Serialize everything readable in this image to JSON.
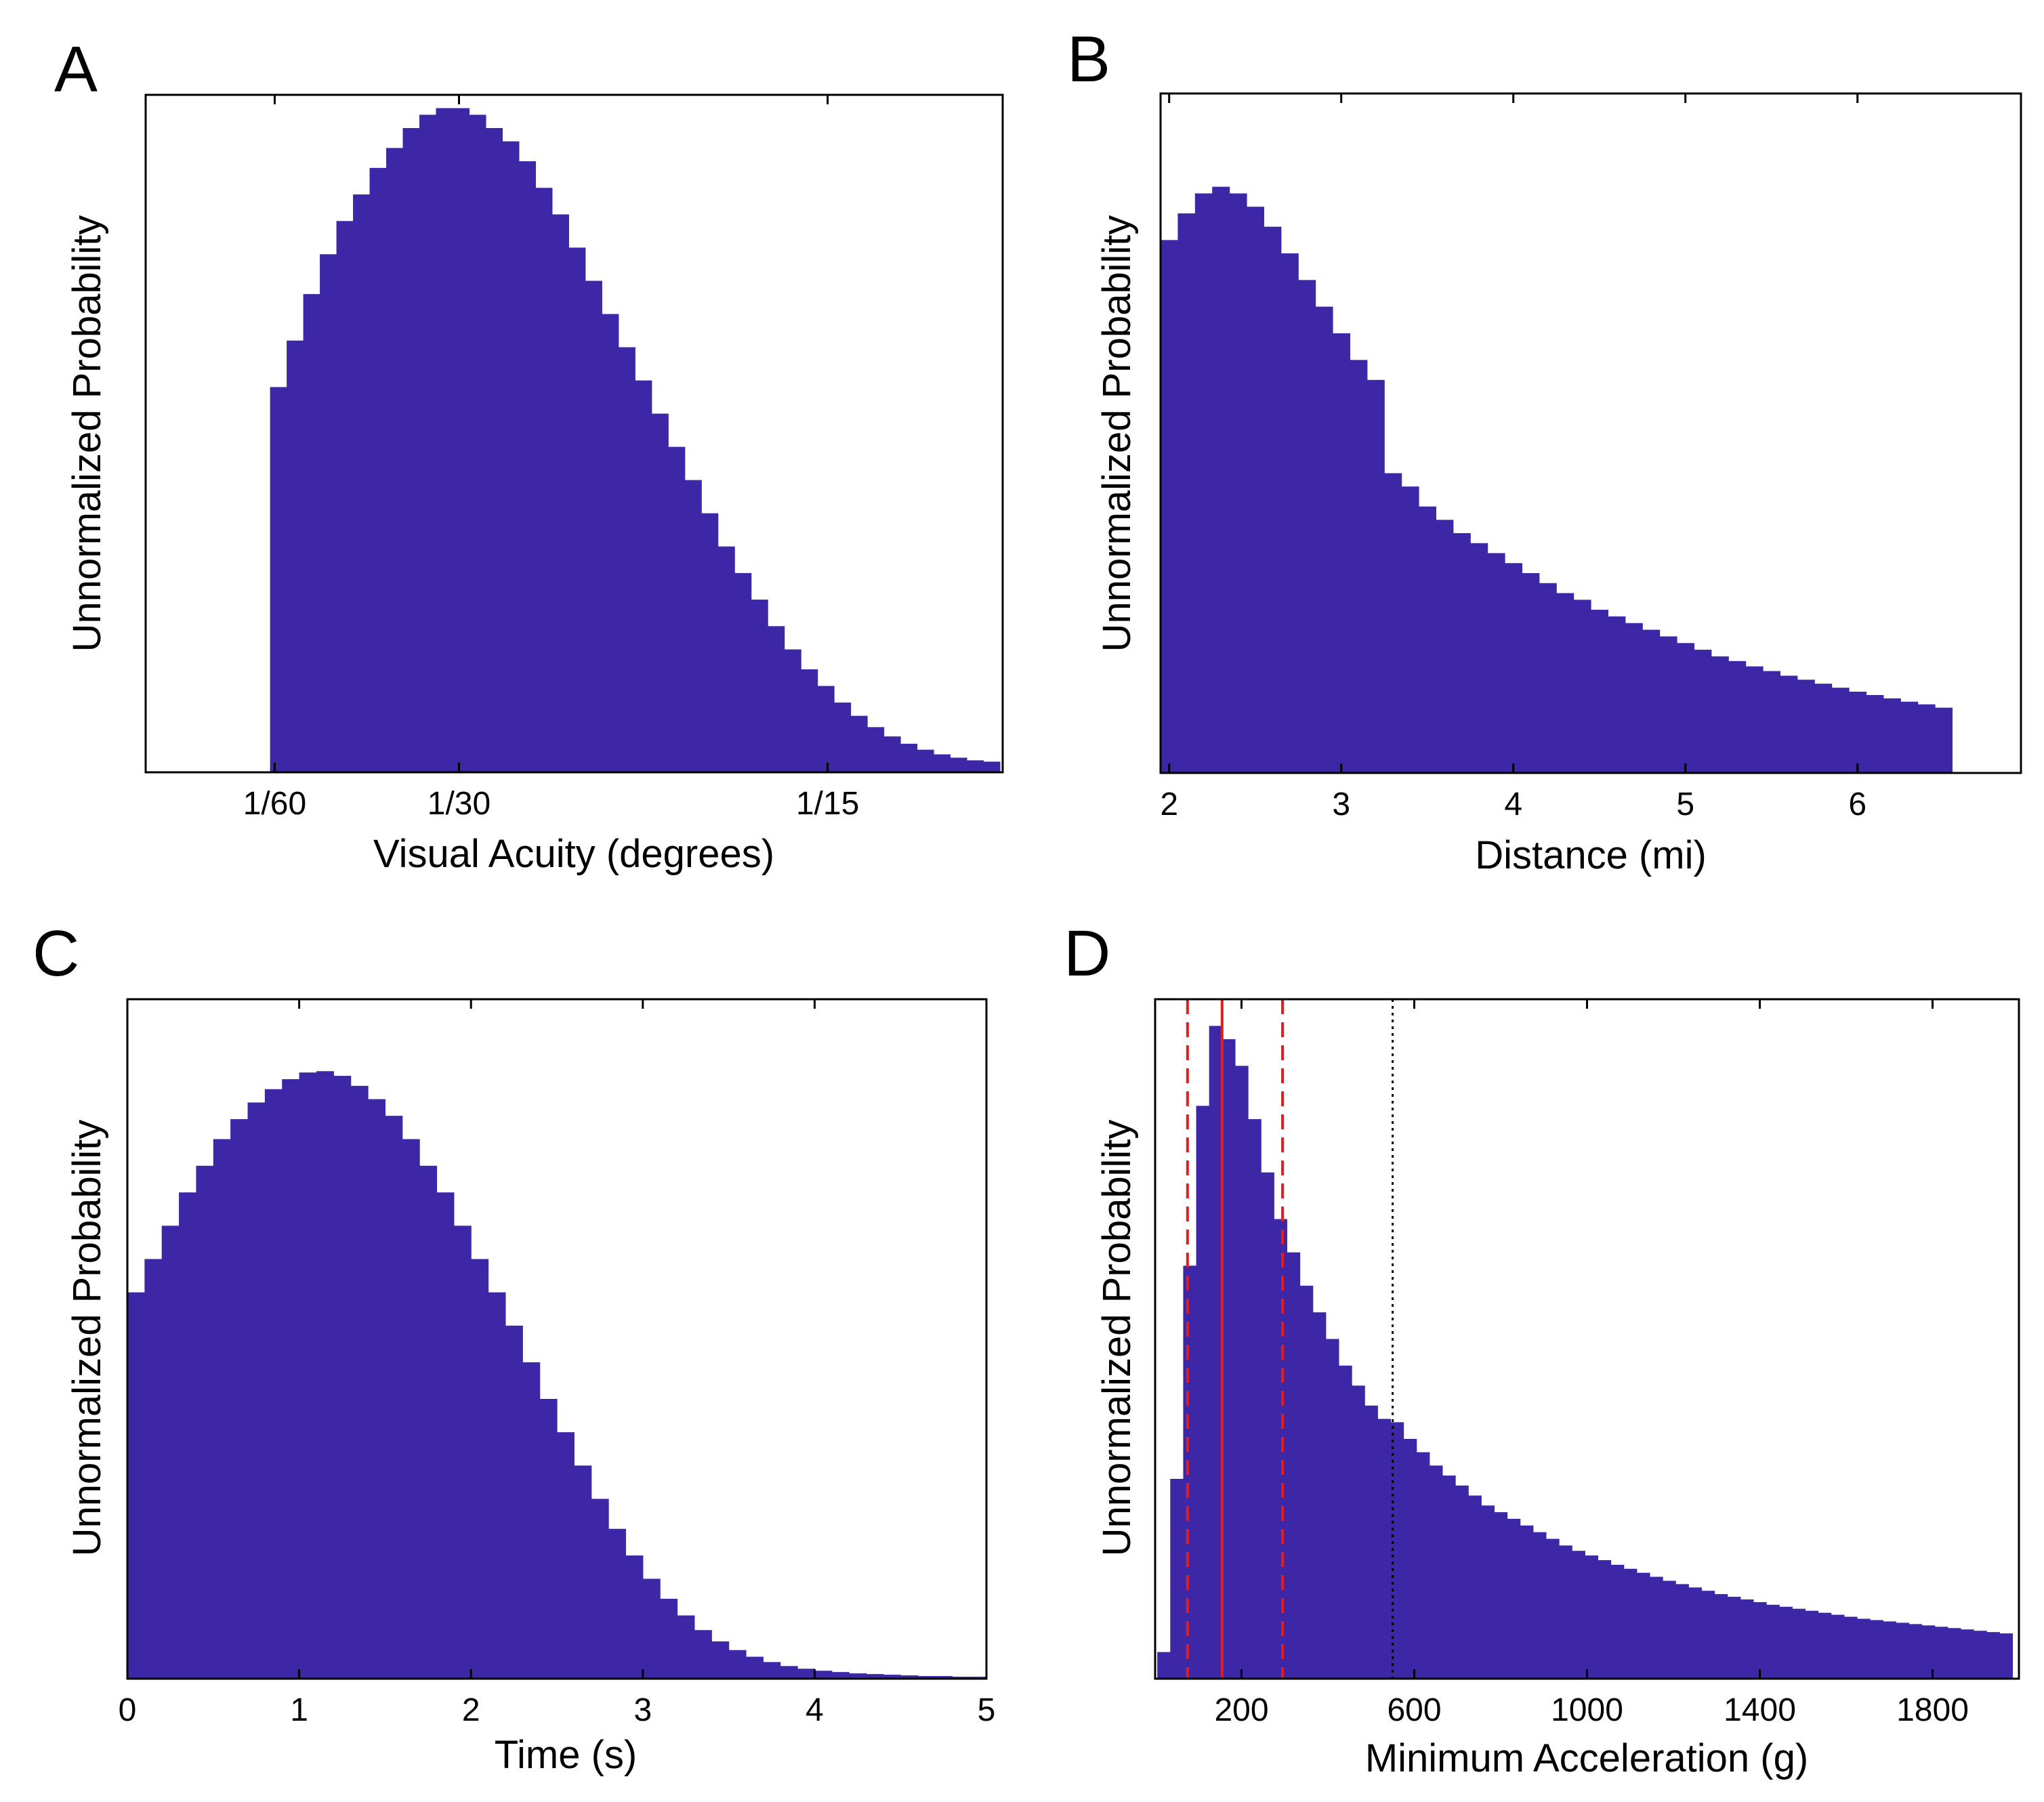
{
  "colors": {
    "bars": "#3d27a6",
    "median_line": "#e11d1d",
    "quartile_line": "#e11d1d",
    "threshold_line": "#000000",
    "axes": "#000000"
  },
  "chart_data": [
    {
      "panel": "A",
      "type": "bar",
      "title": "",
      "xlabel": "Visual Acuity (degrees)",
      "ylabel": "Unnormalized Probability",
      "xlim": [
        0.005,
        0.0825
      ],
      "ylim": [
        0,
        1.02
      ],
      "grid": false,
      "x_ticks": [
        0.016667,
        0.033333,
        0.066667
      ],
      "x_tick_labels": [
        "1/60",
        "1/30",
        "1/15"
      ],
      "x": [
        0.017,
        0.0185,
        0.02,
        0.0215,
        0.023,
        0.0245,
        0.026,
        0.0275,
        0.029,
        0.0305,
        0.032,
        0.0335,
        0.035,
        0.0365,
        0.038,
        0.0395,
        0.041,
        0.0425,
        0.044,
        0.0455,
        0.047,
        0.0485,
        0.05,
        0.0515,
        0.053,
        0.0545,
        0.056,
        0.0575,
        0.059,
        0.0605,
        0.062,
        0.0635,
        0.065,
        0.0665,
        0.068,
        0.0695,
        0.071,
        0.0725,
        0.074,
        0.0755,
        0.077,
        0.0785,
        0.08,
        0.0815
      ],
      "values": [
        0.58,
        0.65,
        0.72,
        0.78,
        0.83,
        0.87,
        0.91,
        0.94,
        0.97,
        0.99,
        1.0,
        1.0,
        0.99,
        0.97,
        0.95,
        0.92,
        0.88,
        0.84,
        0.79,
        0.74,
        0.69,
        0.64,
        0.59,
        0.54,
        0.49,
        0.44,
        0.39,
        0.34,
        0.3,
        0.26,
        0.22,
        0.185,
        0.155,
        0.13,
        0.105,
        0.085,
        0.068,
        0.054,
        0.043,
        0.034,
        0.027,
        0.022,
        0.018,
        0.016
      ]
    },
    {
      "panel": "B",
      "type": "bar",
      "title": "",
      "xlabel": "Distance (mi)",
      "ylabel": "Unnormalized Probability",
      "xlim": [
        1.95,
        6.95
      ],
      "ylim": [
        0,
        1.02
      ],
      "grid": false,
      "x_ticks": [
        2,
        3,
        4,
        5,
        6
      ],
      "x_tick_labels": [
        "2",
        "3",
        "4",
        "5",
        "6"
      ],
      "x": [
        2.0,
        2.1,
        2.2,
        2.3,
        2.4,
        2.5,
        2.6,
        2.7,
        2.8,
        2.9,
        3.0,
        3.1,
        3.2,
        3.3,
        3.4,
        3.5,
        3.6,
        3.7,
        3.8,
        3.9,
        4.0,
        4.1,
        4.2,
        4.3,
        4.4,
        4.5,
        4.6,
        4.7,
        4.8,
        4.9,
        5.0,
        5.1,
        5.2,
        5.3,
        5.4,
        5.5,
        5.6,
        5.7,
        5.8,
        5.9,
        6.0,
        6.1,
        6.2,
        6.3,
        6.4,
        6.5
      ],
      "values": [
        0.8,
        0.84,
        0.87,
        0.88,
        0.87,
        0.85,
        0.82,
        0.78,
        0.74,
        0.7,
        0.66,
        0.62,
        0.59,
        0.45,
        0.43,
        0.4,
        0.38,
        0.36,
        0.345,
        0.33,
        0.315,
        0.3,
        0.285,
        0.27,
        0.26,
        0.245,
        0.235,
        0.225,
        0.215,
        0.205,
        0.195,
        0.185,
        0.175,
        0.168,
        0.16,
        0.153,
        0.146,
        0.14,
        0.134,
        0.128,
        0.122,
        0.117,
        0.112,
        0.107,
        0.103,
        0.098
      ]
    },
    {
      "panel": "C",
      "type": "bar",
      "title": "",
      "xlabel": "Time (s)",
      "ylabel": "Unnormalized Probability",
      "xlim": [
        0,
        5
      ],
      "ylim": [
        0,
        1.02
      ],
      "grid": false,
      "x_ticks": [
        0,
        1,
        2,
        3,
        4,
        5
      ],
      "x_tick_labels": [
        "0",
        "1",
        "2",
        "3",
        "4",
        "5"
      ],
      "x": [
        0.05,
        0.15,
        0.25,
        0.35,
        0.45,
        0.55,
        0.65,
        0.75,
        0.85,
        0.95,
        1.05,
        1.15,
        1.25,
        1.35,
        1.45,
        1.55,
        1.65,
        1.75,
        1.85,
        1.95,
        2.05,
        2.15,
        2.25,
        2.35,
        2.45,
        2.55,
        2.65,
        2.75,
        2.85,
        2.95,
        3.05,
        3.15,
        3.25,
        3.35,
        3.45,
        3.55,
        3.65,
        3.75,
        3.85,
        3.95,
        4.05,
        4.15,
        4.25,
        4.35,
        4.45,
        4.55,
        4.65,
        4.75,
        4.85,
        4.95
      ],
      "values": [
        0.58,
        0.63,
        0.68,
        0.73,
        0.77,
        0.81,
        0.84,
        0.865,
        0.885,
        0.9,
        0.91,
        0.912,
        0.905,
        0.89,
        0.87,
        0.845,
        0.81,
        0.77,
        0.73,
        0.68,
        0.63,
        0.58,
        0.53,
        0.475,
        0.42,
        0.37,
        0.32,
        0.27,
        0.225,
        0.185,
        0.15,
        0.12,
        0.095,
        0.073,
        0.056,
        0.043,
        0.033,
        0.025,
        0.019,
        0.015,
        0.012,
        0.01,
        0.008,
        0.007,
        0.006,
        0.005,
        0.004,
        0.004,
        0.003,
        0.003
      ]
    },
    {
      "panel": "D",
      "type": "bar",
      "title": "",
      "xlabel": "Minimum Acceleration (g)",
      "ylabel": "Unnormalized Probability",
      "xlim": [
        0,
        2000
      ],
      "ylim": [
        0,
        1.02
      ],
      "grid": false,
      "x_ticks": [
        200,
        600,
        1000,
        1400,
        1800
      ],
      "x_tick_labels": [
        "200",
        "600",
        "1000",
        "1400",
        "1800"
      ],
      "x": [
        20,
        50,
        80,
        110,
        140,
        170,
        200,
        230,
        260,
        290,
        320,
        350,
        380,
        410,
        440,
        470,
        500,
        530,
        560,
        590,
        620,
        650,
        680,
        710,
        740,
        770,
        800,
        830,
        860,
        890,
        920,
        950,
        980,
        1010,
        1040,
        1070,
        1100,
        1130,
        1160,
        1190,
        1220,
        1250,
        1280,
        1310,
        1340,
        1370,
        1400,
        1430,
        1460,
        1490,
        1520,
        1550,
        1580,
        1610,
        1640,
        1670,
        1700,
        1730,
        1760,
        1790,
        1820,
        1850,
        1880,
        1910,
        1940,
        1970
      ],
      "values": [
        0.04,
        0.3,
        0.62,
        0.86,
        0.98,
        0.96,
        0.92,
        0.84,
        0.76,
        0.69,
        0.64,
        0.59,
        0.55,
        0.51,
        0.47,
        0.44,
        0.41,
        0.39,
        0.385,
        0.36,
        0.34,
        0.32,
        0.305,
        0.29,
        0.275,
        0.26,
        0.25,
        0.24,
        0.23,
        0.22,
        0.21,
        0.2,
        0.192,
        0.185,
        0.178,
        0.171,
        0.165,
        0.159,
        0.153,
        0.147,
        0.142,
        0.137,
        0.132,
        0.127,
        0.123,
        0.119,
        0.115,
        0.111,
        0.108,
        0.105,
        0.102,
        0.099,
        0.096,
        0.093,
        0.09,
        0.088,
        0.086,
        0.084,
        0.082,
        0.08,
        0.078,
        0.076,
        0.074,
        0.072,
        0.07,
        0.068
      ],
      "vertical_lines": [
        {
          "x": 75,
          "style": "dashed",
          "color": "#e11d1d",
          "role": "lower quartile"
        },
        {
          "x": 155,
          "style": "solid",
          "color": "#e11d1d",
          "role": "median"
        },
        {
          "x": 295,
          "style": "dashed",
          "color": "#e11d1d",
          "role": "upper quartile"
        },
        {
          "x": 550,
          "style": "dotted",
          "color": "#000000",
          "role": "threshold"
        }
      ]
    }
  ]
}
